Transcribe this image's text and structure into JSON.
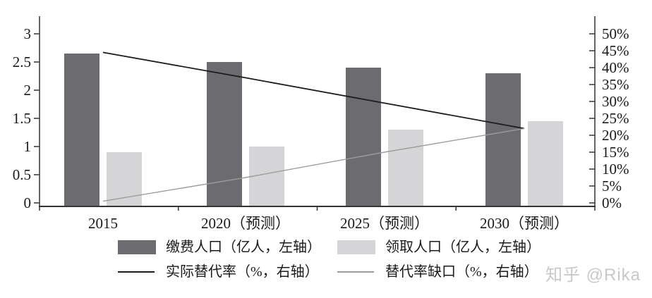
{
  "watermark": "知乎 @Rika",
  "chart_data": {
    "type": "bar+line",
    "title": "",
    "categories": [
      "2015",
      "2020（预测）",
      "2025（预测）",
      "2030（预测）"
    ],
    "bar_series": [
      {
        "name": "缴费人口（亿人，左轴）",
        "axis": "left",
        "color": "#6c6c70",
        "values": [
          2.65,
          2.5,
          2.4,
          2.3
        ]
      },
      {
        "name": "领取人口（亿人，左轴）",
        "axis": "left",
        "color": "#d5d5d7",
        "values": [
          0.9,
          1.0,
          1.3,
          1.45
        ]
      }
    ],
    "line_series": [
      {
        "name": "实际替代率（%，右轴）",
        "axis": "right",
        "color": "#1c1c1c",
        "values": [
          44.5,
          37,
          29.5,
          22
        ]
      },
      {
        "name": "替代率缺口（%，右轴）",
        "axis": "right",
        "color": "#9c9c9c",
        "values": [
          0.5,
          7.5,
          15,
          22
        ]
      }
    ],
    "left_axis": {
      "min": 0,
      "max": 3,
      "tick_labels": [
        "0",
        "0.5",
        "1",
        "1.5",
        "2",
        "2.5",
        "3"
      ],
      "tick_values": [
        0,
        0.5,
        1,
        1.5,
        2,
        2.5,
        3
      ]
    },
    "right_axis": {
      "min": 0,
      "max": 50,
      "tick_labels": [
        "0%",
        "5%",
        "10%",
        "15%",
        "20%",
        "25%",
        "30%",
        "35%",
        "40%",
        "45%",
        "50%"
      ],
      "tick_values": [
        0,
        5,
        10,
        15,
        20,
        25,
        30,
        35,
        40,
        45,
        50
      ]
    },
    "grid": false,
    "legend_position": "bottom"
  }
}
